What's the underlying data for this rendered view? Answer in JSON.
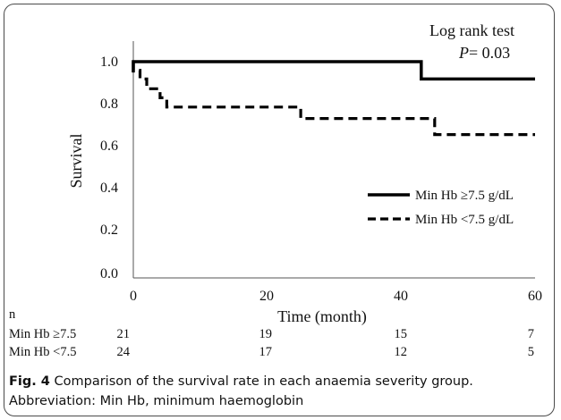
{
  "chart_data": {
    "type": "line",
    "step": true,
    "title": "",
    "xlabel": "Time (month)",
    "ylabel": "Survival",
    "xlim": [
      0,
      60
    ],
    "ylim": [
      0.0,
      1.0
    ],
    "xticks": [
      "0",
      "20",
      "40",
      "60"
    ],
    "yticks": [
      "0.0",
      "0.2",
      "0.4",
      "0.6",
      "0.8",
      "1.0"
    ],
    "annotation": {
      "line1": "Log rank test",
      "p_label": "P",
      "p_value": "= 0.03"
    },
    "legend_placement": "right",
    "series": [
      {
        "name": "Min Hb ≥7.5 g/dL",
        "style": "solid",
        "color": "#000000",
        "points": [
          [
            0,
            0.95
          ],
          [
            0,
            1.0
          ],
          [
            43,
            1.0
          ],
          [
            43,
            0.92
          ],
          [
            60,
            0.92
          ]
        ]
      },
      {
        "name": "Min Hb <7.5 g/dL",
        "style": "dashed",
        "color": "#000000",
        "points": [
          [
            0,
            1.0
          ],
          [
            0,
            0.96
          ],
          [
            1,
            0.96
          ],
          [
            1,
            0.92
          ],
          [
            2,
            0.92
          ],
          [
            2,
            0.875
          ],
          [
            4,
            0.875
          ],
          [
            4,
            0.833
          ],
          [
            5,
            0.833
          ],
          [
            5,
            0.79
          ],
          [
            25,
            0.79
          ],
          [
            25,
            0.737
          ],
          [
            45,
            0.737
          ],
          [
            45,
            0.663
          ],
          [
            60,
            0.663
          ]
        ]
      }
    ],
    "risk_table": {
      "header": "n",
      "rows": [
        {
          "label": "Min Hb ≥7.5",
          "values": [
            "21",
            "19",
            "15",
            "7"
          ]
        },
        {
          "label": "Min Hb <7.5",
          "values": [
            "24",
            "17",
            "12",
            "5"
          ]
        }
      ]
    }
  },
  "caption": {
    "fig_label": "Fig. 4",
    "text": " Comparison of the survival rate in each anaemia severity group.",
    "abbreviation": "Abbreviation: Min Hb, minimum haemoglobin"
  }
}
